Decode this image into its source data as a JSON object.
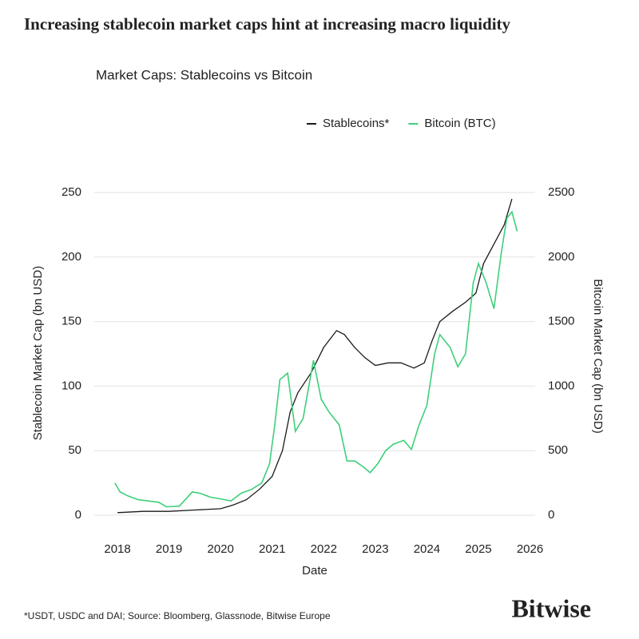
{
  "title": "Increasing stablecoin market caps hint at increasing macro liquidity",
  "footnote": "*USDT, USDC and DAI; Source: Bloomberg, Glassnode, Bitwise Europe",
  "brand": "Bitwise",
  "chart_data": {
    "type": "line",
    "title": "Market Caps: Stablecoins vs Bitcoin",
    "x_label": "Date",
    "y_label": "Stablecoin Market Cap (bn USD)",
    "y2_label": "Bitcoin Market Cap (bn USD)",
    "legend": "top-right",
    "grid": true,
    "xlim": [
      2017.55,
      2026.1
    ],
    "xticks": [
      2018,
      2019,
      2020,
      2021,
      2022,
      2023,
      2024,
      2025,
      2026
    ],
    "ylim": [
      0,
      250
    ],
    "yticks": [
      0,
      50,
      100,
      150,
      200,
      250
    ],
    "y2lim": [
      0,
      2500
    ],
    "y2ticks": [
      0,
      500,
      1000,
      1500,
      2000,
      2500
    ],
    "series": [
      {
        "name": "Stablecoins*",
        "color": "#1a1a1a",
        "x": [
          2018.0,
          2018.5,
          2019.0,
          2019.5,
          2020.0,
          2020.25,
          2020.5,
          2020.75,
          2021.0,
          2021.2,
          2021.35,
          2021.5,
          2021.75,
          2022.0,
          2022.25,
          2022.4,
          2022.6,
          2022.8,
          2023.0,
          2023.25,
          2023.5,
          2023.75,
          2023.95,
          2024.1,
          2024.25,
          2024.5,
          2024.75,
          2024.95,
          2025.1,
          2025.3,
          2025.5,
          2025.65
        ],
        "values": [
          2,
          3,
          3,
          4,
          5,
          8,
          12,
          20,
          30,
          50,
          80,
          95,
          110,
          130,
          143,
          140,
          130,
          122,
          116,
          118,
          118,
          114,
          118,
          135,
          150,
          158,
          165,
          172,
          195,
          210,
          225,
          245
        ]
      },
      {
        "name": "Bitcoin (BTC)",
        "color": "#3ecf7a",
        "axis": "y2",
        "x": [
          2017.95,
          2018.05,
          2018.2,
          2018.4,
          2018.6,
          2018.8,
          2018.95,
          2019.2,
          2019.45,
          2019.6,
          2019.8,
          2019.95,
          2020.2,
          2020.4,
          2020.6,
          2020.8,
          2020.95,
          2021.05,
          2021.15,
          2021.3,
          2021.45,
          2021.6,
          2021.8,
          2021.95,
          2022.1,
          2022.3,
          2022.45,
          2022.6,
          2022.75,
          2022.9,
          2023.05,
          2023.2,
          2023.35,
          2023.55,
          2023.7,
          2023.85,
          2024.0,
          2024.15,
          2024.25,
          2024.45,
          2024.6,
          2024.75,
          2024.9,
          2025.0,
          2025.15,
          2025.3,
          2025.45,
          2025.55,
          2025.65,
          2025.75
        ],
        "values": [
          250,
          180,
          150,
          120,
          110,
          100,
          65,
          70,
          180,
          170,
          140,
          130,
          110,
          170,
          200,
          250,
          400,
          700,
          1050,
          1100,
          650,
          750,
          1200,
          900,
          800,
          700,
          420,
          420,
          380,
          330,
          400,
          500,
          550,
          580,
          510,
          700,
          850,
          1250,
          1400,
          1300,
          1150,
          1250,
          1800,
          1950,
          1800,
          1600,
          2050,
          2300,
          2350,
          2200
        ]
      }
    ]
  }
}
